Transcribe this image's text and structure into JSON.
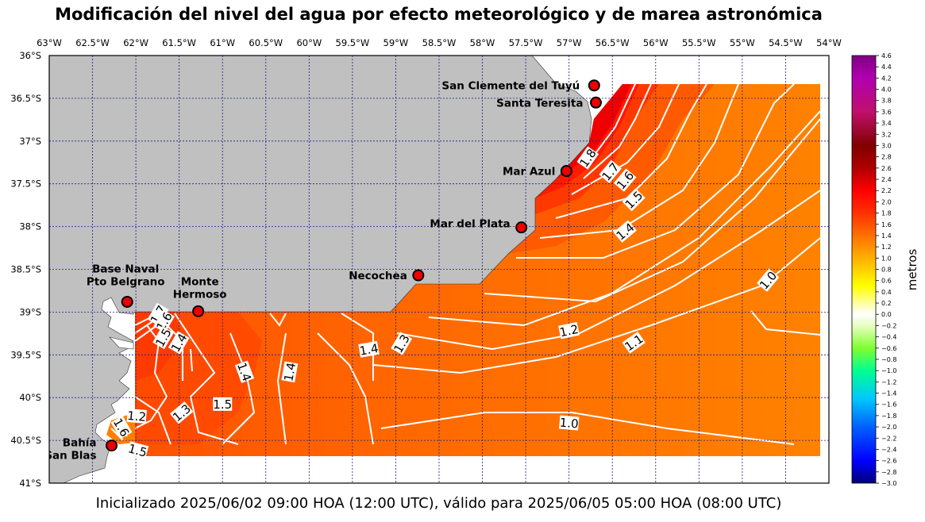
{
  "title": "Modificación del nivel del agua por efecto meteorológico y de marea astronómica",
  "footer": "Inicializado 2025/06/02 09:00 HOA (12:00 UTC), válido para 2025/06/05 05:00 HOA (08:00 UTC)",
  "map": {
    "lon_range": [
      -63,
      -54
    ],
    "lat_range": [
      -41,
      -36
    ],
    "lon_ticks": [
      {
        "value": -63,
        "label": "63°W"
      },
      {
        "value": -62.5,
        "label": "62.5°W"
      },
      {
        "value": -62,
        "label": "62°W"
      },
      {
        "value": -61.5,
        "label": "61.5°W"
      },
      {
        "value": -61,
        "label": "61°W"
      },
      {
        "value": -60.5,
        "label": "60.5°W"
      },
      {
        "value": -60,
        "label": "60°W"
      },
      {
        "value": -59.5,
        "label": "59.5°W"
      },
      {
        "value": -59,
        "label": "59°W"
      },
      {
        "value": -58.5,
        "label": "58.5°W"
      },
      {
        "value": -58,
        "label": "58°W"
      },
      {
        "value": -57.5,
        "label": "57.5°W"
      },
      {
        "value": -57,
        "label": "57°W"
      },
      {
        "value": -56.5,
        "label": "56.5°W"
      },
      {
        "value": -56,
        "label": "56°W"
      },
      {
        "value": -55.5,
        "label": "55.5°W"
      },
      {
        "value": -55,
        "label": "55°W"
      },
      {
        "value": -54.5,
        "label": "54.5°W"
      },
      {
        "value": -54,
        "label": "54°W"
      }
    ],
    "lat_ticks": [
      {
        "value": -36,
        "label": "36°S"
      },
      {
        "value": -36.5,
        "label": "36.5°S"
      },
      {
        "value": -37,
        "label": "37°S"
      },
      {
        "value": -37.5,
        "label": "37.5°S"
      },
      {
        "value": -38,
        "label": "38°S"
      },
      {
        "value": -38.5,
        "label": "38.5°S"
      },
      {
        "value": -39,
        "label": "39°S"
      },
      {
        "value": -39.5,
        "label": "39.5°S"
      },
      {
        "value": -40,
        "label": "40°S"
      },
      {
        "value": -40.5,
        "label": "40.5°S"
      },
      {
        "value": -41,
        "label": "41°S"
      }
    ],
    "land_color": "#c0c0c0",
    "grid_color": "#1a1a8c",
    "contour_color": "#ffffff"
  },
  "cities": [
    {
      "name": [
        "San Clemente del Tuyú"
      ],
      "lon": -56.71,
      "lat": -36.35,
      "anchor": "end",
      "dx": -18,
      "dy": 0
    },
    {
      "name": [
        "Santa Teresita"
      ],
      "lon": -56.69,
      "lat": -36.55,
      "anchor": "end",
      "dx": -16,
      "dy": 0
    },
    {
      "name": [
        "Mar Azul"
      ],
      "lon": -57.03,
      "lat": -37.35,
      "anchor": "end",
      "dx": -14,
      "dy": 0
    },
    {
      "name": [
        "Mar del Plata"
      ],
      "lon": -57.55,
      "lat": -38.01,
      "anchor": "end",
      "dx": -14,
      "dy": -5
    },
    {
      "name": [
        "Necochea"
      ],
      "lon": -58.74,
      "lat": -38.57,
      "anchor": "end",
      "dx": -14,
      "dy": 0
    },
    {
      "name": [
        "Monte",
        "Hermoso"
      ],
      "lon": -61.28,
      "lat": -38.99,
      "anchor": "middle",
      "dx": 2,
      "dy": -38
    },
    {
      "name": [
        "Base Naval",
        "Pto Belgrano"
      ],
      "lon": -62.1,
      "lat": -38.88,
      "anchor": "middle",
      "dx": -2,
      "dy": -42
    },
    {
      "name": [
        "Bahía",
        "San Blas"
      ],
      "lon": -62.28,
      "lat": -40.56,
      "anchor": "end",
      "dx": -19,
      "dy": -4
    }
  ],
  "contour_labels": [
    {
      "text": "1.8",
      "lon": -56.78,
      "lat": -37.2,
      "rot": -55
    },
    {
      "text": "1.7",
      "lon": -56.52,
      "lat": -37.36,
      "rot": -50
    },
    {
      "text": "1.6",
      "lon": -56.35,
      "lat": -37.46,
      "rot": -50
    },
    {
      "text": "1.5",
      "lon": -56.25,
      "lat": -37.69,
      "rot": -45
    },
    {
      "text": "1.4",
      "lon": -56.35,
      "lat": -38.06,
      "rot": -40
    },
    {
      "text": "1.0",
      "lon": -54.7,
      "lat": -38.63,
      "rot": -50
    },
    {
      "text": "1.2",
      "lon": -57.0,
      "lat": -39.22,
      "rot": -12
    },
    {
      "text": "1.1",
      "lon": -56.25,
      "lat": -39.36,
      "rot": -35
    },
    {
      "text": "1.4",
      "lon": -59.31,
      "lat": -39.44,
      "rot": -10
    },
    {
      "text": "1.3",
      "lon": -58.93,
      "lat": -39.37,
      "rot": -60
    },
    {
      "text": "1.4",
      "lon": -60.75,
      "lat": -39.7,
      "rot": 70
    },
    {
      "text": "1.4",
      "lon": -60.22,
      "lat": -39.7,
      "rot": -80
    },
    {
      "text": "1.5",
      "lon": -61.0,
      "lat": -40.08,
      "rot": 0
    },
    {
      "text": "1.3",
      "lon": -61.47,
      "lat": -40.18,
      "rot": -40
    },
    {
      "text": "1.2",
      "lon": -61.99,
      "lat": -40.22,
      "rot": 5
    },
    {
      "text": "1.6",
      "lon": -62.17,
      "lat": -40.35,
      "rot": 60
    },
    {
      "text": "1.5",
      "lon": -61.98,
      "lat": -40.62,
      "rot": 15
    },
    {
      "text": "1.0",
      "lon": -57.0,
      "lat": -40.3,
      "rot": 5
    },
    {
      "text": "1.7",
      "lon": -61.74,
      "lat": -39.03,
      "rot": -60
    },
    {
      "text": "1.6",
      "lon": -61.67,
      "lat": -39.11,
      "rot": -60
    },
    {
      "text": "1.5",
      "lon": -61.68,
      "lat": -39.3,
      "rot": -60
    },
    {
      "text": "1.4",
      "lon": -61.5,
      "lat": -39.36,
      "rot": -60
    }
  ],
  "colorbar": {
    "label": "metros",
    "min": -3.0,
    "max": 4.6,
    "ticks": [
      "4.6",
      "4.4",
      "4.2",
      "4.0",
      "3.8",
      "3.6",
      "3.4",
      "3.2",
      "3.0",
      "2.8",
      "2.6",
      "2.4",
      "2.2",
      "2.0",
      "1.8",
      "1.6",
      "1.4",
      "1.2",
      "1.0",
      "0.8",
      "0.6",
      "0.4",
      "0.2",
      "0.0",
      "−0.2",
      "−0.4",
      "−0.6",
      "−0.8",
      "−1.0",
      "−1.2",
      "−1.4",
      "−1.6",
      "−1.8",
      "−2.0",
      "−2.2",
      "−2.4",
      "−2.6",
      "−2.8",
      "−3.0"
    ],
    "stops": [
      {
        "value": -3.0,
        "color": "#00007a"
      },
      {
        "value": -2.6,
        "color": "#0000ff"
      },
      {
        "value": -2.0,
        "color": "#0060ff"
      },
      {
        "value": -1.5,
        "color": "#00c8ff"
      },
      {
        "value": -1.0,
        "color": "#00ff90"
      },
      {
        "value": -0.6,
        "color": "#80ff30"
      },
      {
        "value": -0.2,
        "color": "#e8ffc0"
      },
      {
        "value": 0.0,
        "color": "#ffffff"
      },
      {
        "value": 0.2,
        "color": "#ffffa0"
      },
      {
        "value": 0.5,
        "color": "#ffff00"
      },
      {
        "value": 0.9,
        "color": "#ffc000"
      },
      {
        "value": 1.3,
        "color": "#ff8000"
      },
      {
        "value": 1.8,
        "color": "#ff3000"
      },
      {
        "value": 2.2,
        "color": "#ff0000"
      },
      {
        "value": 2.6,
        "color": "#b00000"
      },
      {
        "value": 3.0,
        "color": "#800000"
      },
      {
        "value": 3.6,
        "color": "#c0106c"
      },
      {
        "value": 4.2,
        "color": "#b000b0"
      },
      {
        "value": 4.6,
        "color": "#800080"
      }
    ]
  }
}
